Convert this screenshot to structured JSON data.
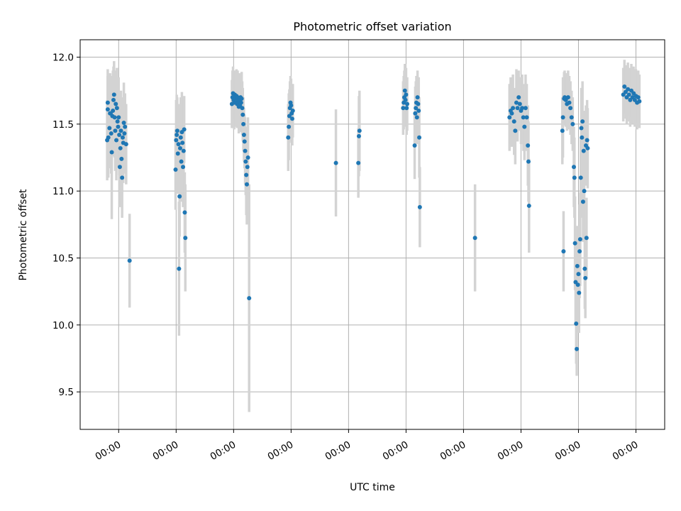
{
  "chart_data": {
    "type": "scatter",
    "title": "Photometric offset variation",
    "xlabel": "UTC time",
    "ylabel": "Photometric offset",
    "xlim": [
      -0.67,
      9.5
    ],
    "ylim": [
      9.22,
      12.13
    ],
    "x_ticks": [
      0,
      1,
      2,
      3,
      4,
      5,
      6,
      7,
      8,
      9
    ],
    "x_tick_labels": [
      "00:00",
      "00:00",
      "00:00",
      "00:00",
      "00:00",
      "00:00",
      "00:00",
      "00:00",
      "00:00",
      "00:00"
    ],
    "y_ticks": [
      9.5,
      10.0,
      10.5,
      11.0,
      11.5,
      12.0
    ],
    "y_tick_labels": [
      "9.5",
      "10.0",
      "10.5",
      "11.0",
      "11.5",
      "12.0"
    ],
    "grid": true,
    "marker_color": "#1f77b4",
    "errorbar_color": "#d3d3d3",
    "series": [
      {
        "points": [
          [
            -0.2,
            11.38,
            0.3
          ],
          [
            -0.19,
            11.66,
            0.25
          ],
          [
            -0.19,
            11.61,
            0.25
          ],
          [
            -0.18,
            11.4,
            0.3
          ],
          [
            -0.16,
            11.47,
            0.3
          ],
          [
            -0.15,
            11.58,
            0.3
          ],
          [
            -0.14,
            11.58,
            0.25
          ],
          [
            -0.13,
            11.43,
            0.3
          ],
          [
            -0.12,
            11.29,
            0.5
          ],
          [
            -0.11,
            11.56,
            0.3
          ],
          [
            -0.1,
            11.6,
            0.3
          ],
          [
            -0.09,
            11.68,
            0.25
          ],
          [
            -0.08,
            11.72,
            0.25
          ],
          [
            -0.07,
            11.55,
            0.3
          ],
          [
            -0.06,
            11.45,
            0.3
          ],
          [
            -0.05,
            11.65,
            0.25
          ],
          [
            -0.04,
            11.38,
            0.3
          ],
          [
            -0.03,
            11.62,
            0.3
          ],
          [
            -0.02,
            11.52,
            0.3
          ],
          [
            -0.01,
            11.48,
            0.3
          ],
          [
            0.0,
            11.55,
            0.3
          ],
          [
            0.01,
            11.42,
            0.3
          ],
          [
            0.02,
            11.18,
            0.3
          ],
          [
            0.03,
            11.32,
            0.3
          ],
          [
            0.04,
            11.45,
            0.3
          ],
          [
            0.05,
            11.24,
            0.3
          ],
          [
            0.06,
            11.1,
            0.3
          ],
          [
            0.07,
            11.4,
            0.3
          ],
          [
            0.08,
            11.36,
            0.3
          ],
          [
            0.09,
            11.51,
            0.3
          ],
          [
            0.1,
            11.43,
            0.3
          ],
          [
            0.11,
            11.48,
            0.25
          ],
          [
            0.13,
            11.35,
            0.3
          ],
          [
            0.19,
            10.48,
            0.35
          ],
          [
            0.99,
            11.16,
            0.3
          ],
          [
            1.0,
            11.38,
            0.3
          ],
          [
            1.01,
            11.42,
            0.3
          ],
          [
            1.02,
            11.45,
            0.25
          ],
          [
            1.03,
            11.28,
            0.3
          ],
          [
            1.04,
            11.35,
            0.3
          ],
          [
            1.05,
            10.42,
            0.5
          ],
          [
            1.06,
            10.96,
            0.3
          ],
          [
            1.07,
            11.32,
            0.3
          ],
          [
            1.08,
            11.4,
            0.3
          ],
          [
            1.09,
            11.22,
            0.3
          ],
          [
            1.1,
            11.44,
            0.3
          ],
          [
            1.11,
            11.36,
            0.3
          ],
          [
            1.12,
            11.18,
            0.3
          ],
          [
            1.13,
            11.3,
            0.3
          ],
          [
            1.14,
            11.46,
            0.25
          ],
          [
            1.15,
            10.84,
            0.3
          ],
          [
            1.16,
            10.65,
            0.4
          ],
          [
            1.97,
            11.65,
            0.18
          ],
          [
            1.98,
            11.7,
            0.2
          ],
          [
            1.99,
            11.73,
            0.2
          ],
          [
            2.0,
            11.68,
            0.2
          ],
          [
            2.01,
            11.66,
            0.2
          ],
          [
            2.02,
            11.72,
            0.18
          ],
          [
            2.03,
            11.69,
            0.2
          ],
          [
            2.04,
            11.66,
            0.18
          ],
          [
            2.05,
            11.71,
            0.2
          ],
          [
            2.06,
            11.65,
            0.18
          ],
          [
            2.07,
            11.7,
            0.2
          ],
          [
            2.08,
            11.68,
            0.2
          ],
          [
            2.09,
            11.63,
            0.2
          ],
          [
            2.1,
            11.67,
            0.2
          ],
          [
            2.11,
            11.64,
            0.2
          ],
          [
            2.12,
            11.7,
            0.18
          ],
          [
            2.13,
            11.66,
            0.2
          ],
          [
            2.14,
            11.69,
            0.2
          ],
          [
            2.15,
            11.62,
            0.2
          ],
          [
            2.16,
            11.57,
            0.2
          ],
          [
            2.17,
            11.5,
            0.2
          ],
          [
            2.18,
            11.42,
            0.2
          ],
          [
            2.19,
            11.37,
            0.2
          ],
          [
            2.2,
            11.3,
            0.25
          ],
          [
            2.21,
            11.22,
            0.25
          ],
          [
            2.22,
            11.12,
            0.3
          ],
          [
            2.23,
            11.05,
            0.3
          ],
          [
            2.24,
            11.18,
            0.3
          ],
          [
            2.25,
            11.25,
            0.3
          ],
          [
            2.27,
            10.2,
            0.85
          ],
          [
            2.95,
            11.4,
            0.25
          ],
          [
            2.96,
            11.48,
            0.25
          ],
          [
            2.97,
            11.56,
            0.2
          ],
          [
            2.98,
            11.62,
            0.2
          ],
          [
            2.99,
            11.66,
            0.2
          ],
          [
            3.0,
            11.64,
            0.2
          ],
          [
            3.01,
            11.58,
            0.2
          ],
          [
            3.02,
            11.54,
            0.2
          ],
          [
            3.03,
            11.6,
            0.2
          ],
          [
            3.78,
            11.21,
            0.4
          ],
          [
            4.17,
            11.21,
            0.26
          ],
          [
            4.18,
            11.41,
            0.3
          ],
          [
            4.19,
            11.45,
            0.3
          ],
          [
            4.95,
            11.62,
            0.2
          ],
          [
            4.96,
            11.66,
            0.2
          ],
          [
            4.97,
            11.7,
            0.2
          ],
          [
            4.98,
            11.75,
            0.2
          ],
          [
            4.99,
            11.68,
            0.2
          ],
          [
            5.0,
            11.72,
            0.2
          ],
          [
            5.01,
            11.62,
            0.2
          ],
          [
            5.02,
            11.65,
            0.2
          ],
          [
            5.15,
            11.34,
            0.25
          ],
          [
            5.16,
            11.58,
            0.2
          ],
          [
            5.17,
            11.62,
            0.2
          ],
          [
            5.18,
            11.66,
            0.2
          ],
          [
            5.19,
            11.55,
            0.2
          ],
          [
            5.2,
            11.7,
            0.2
          ],
          [
            5.21,
            11.65,
            0.2
          ],
          [
            5.22,
            11.6,
            0.25
          ],
          [
            5.23,
            11.4,
            0.3
          ],
          [
            5.24,
            10.88,
            0.3
          ],
          [
            6.2,
            10.65,
            0.4
          ],
          [
            6.8,
            11.55,
            0.25
          ],
          [
            6.82,
            11.6,
            0.25
          ],
          [
            6.84,
            11.58,
            0.25
          ],
          [
            6.86,
            11.62,
            0.25
          ],
          [
            6.88,
            11.52,
            0.25
          ],
          [
            6.9,
            11.45,
            0.25
          ],
          [
            6.92,
            11.66,
            0.25
          ],
          [
            6.94,
            11.62,
            0.25
          ],
          [
            6.96,
            11.7,
            0.2
          ],
          [
            6.98,
            11.65,
            0.2
          ],
          [
            7.0,
            11.6,
            0.25
          ],
          [
            7.02,
            11.62,
            0.25
          ],
          [
            7.04,
            11.55,
            0.25
          ],
          [
            7.06,
            11.48,
            0.25
          ],
          [
            7.08,
            11.62,
            0.25
          ],
          [
            7.1,
            11.55,
            0.25
          ],
          [
            7.12,
            11.34,
            0.3
          ],
          [
            7.13,
            11.22,
            0.3
          ],
          [
            7.14,
            10.89,
            0.35
          ],
          [
            7.72,
            11.45,
            0.25
          ],
          [
            7.73,
            11.55,
            0.3
          ],
          [
            7.74,
            10.55,
            0.3
          ],
          [
            7.75,
            11.69,
            0.2
          ],
          [
            7.76,
            11.7,
            0.2
          ],
          [
            7.78,
            11.68,
            0.2
          ],
          [
            7.8,
            11.65,
            0.2
          ],
          [
            7.82,
            11.7,
            0.2
          ],
          [
            7.84,
            11.66,
            0.2
          ],
          [
            7.86,
            11.62,
            0.2
          ],
          [
            7.88,
            11.55,
            0.2
          ],
          [
            7.9,
            11.5,
            0.2
          ],
          [
            7.92,
            11.18,
            0.3
          ],
          [
            7.93,
            11.1,
            0.3
          ],
          [
            7.94,
            10.61,
            0.35
          ],
          [
            7.95,
            10.32,
            0.3
          ],
          [
            7.96,
            10.01,
            0.3
          ],
          [
            7.97,
            9.82,
            0.2
          ],
          [
            7.98,
            10.44,
            0.3
          ],
          [
            7.99,
            10.3,
            0.35
          ],
          [
            8.0,
            10.38,
            0.35
          ],
          [
            8.01,
            10.24,
            0.3
          ],
          [
            8.02,
            10.55,
            0.35
          ],
          [
            8.03,
            10.64,
            0.35
          ],
          [
            8.04,
            11.1,
            0.3
          ],
          [
            8.05,
            11.47,
            0.3
          ],
          [
            8.06,
            11.4,
            0.3
          ],
          [
            8.07,
            11.52,
            0.3
          ],
          [
            8.08,
            10.92,
            0.3
          ],
          [
            8.09,
            11.3,
            0.3
          ],
          [
            8.1,
            11.0,
            0.3
          ],
          [
            8.11,
            10.42,
            0.3
          ],
          [
            8.12,
            10.35,
            0.3
          ],
          [
            8.13,
            11.34,
            0.3
          ],
          [
            8.14,
            10.65,
            0.3
          ],
          [
            8.15,
            11.38,
            0.3
          ],
          [
            8.16,
            11.32,
            0.3
          ],
          [
            8.78,
            11.72,
            0.2
          ],
          [
            8.8,
            11.78,
            0.2
          ],
          [
            8.82,
            11.74,
            0.2
          ],
          [
            8.84,
            11.7,
            0.2
          ],
          [
            8.86,
            11.76,
            0.2
          ],
          [
            8.88,
            11.72,
            0.2
          ],
          [
            8.9,
            11.68,
            0.2
          ],
          [
            8.92,
            11.75,
            0.2
          ],
          [
            8.94,
            11.7,
            0.2
          ],
          [
            8.96,
            11.73,
            0.2
          ],
          [
            8.98,
            11.68,
            0.2
          ],
          [
            9.0,
            11.71,
            0.2
          ],
          [
            9.02,
            11.66,
            0.2
          ],
          [
            9.04,
            11.7,
            0.2
          ],
          [
            9.06,
            11.67,
            0.2
          ]
        ]
      }
    ]
  }
}
